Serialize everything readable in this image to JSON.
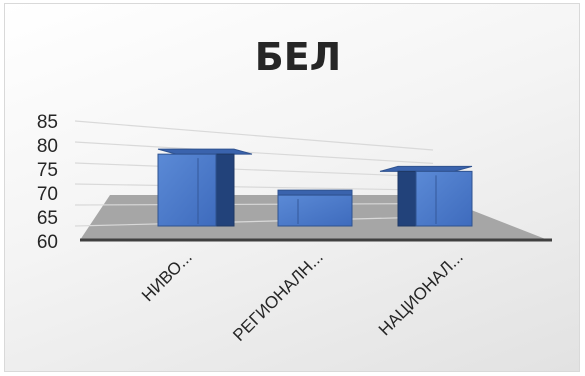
{
  "chart_data": {
    "type": "bar",
    "title": "БЕЛ",
    "categories": [
      "НИВО...",
      "РЕГИОНАЛН...",
      "НАЦИОНАЛ..."
    ],
    "series": [
      {
        "values": [
          78.3,
          69.5,
          74.2
        ]
      }
    ],
    "y_ticks": [
      "85",
      "80",
      "75",
      "70",
      "65",
      "60"
    ],
    "ylim": [
      60,
      85
    ],
    "xlabel": "",
    "ylabel": "",
    "grid": true,
    "style": "3d-column",
    "colors": {
      "bar_front": "#4472c4",
      "bar_top": "#3a63ad",
      "bar_side": "#22427a",
      "floor": "#a6a6a6",
      "gridline": "#d9d9d9"
    }
  }
}
